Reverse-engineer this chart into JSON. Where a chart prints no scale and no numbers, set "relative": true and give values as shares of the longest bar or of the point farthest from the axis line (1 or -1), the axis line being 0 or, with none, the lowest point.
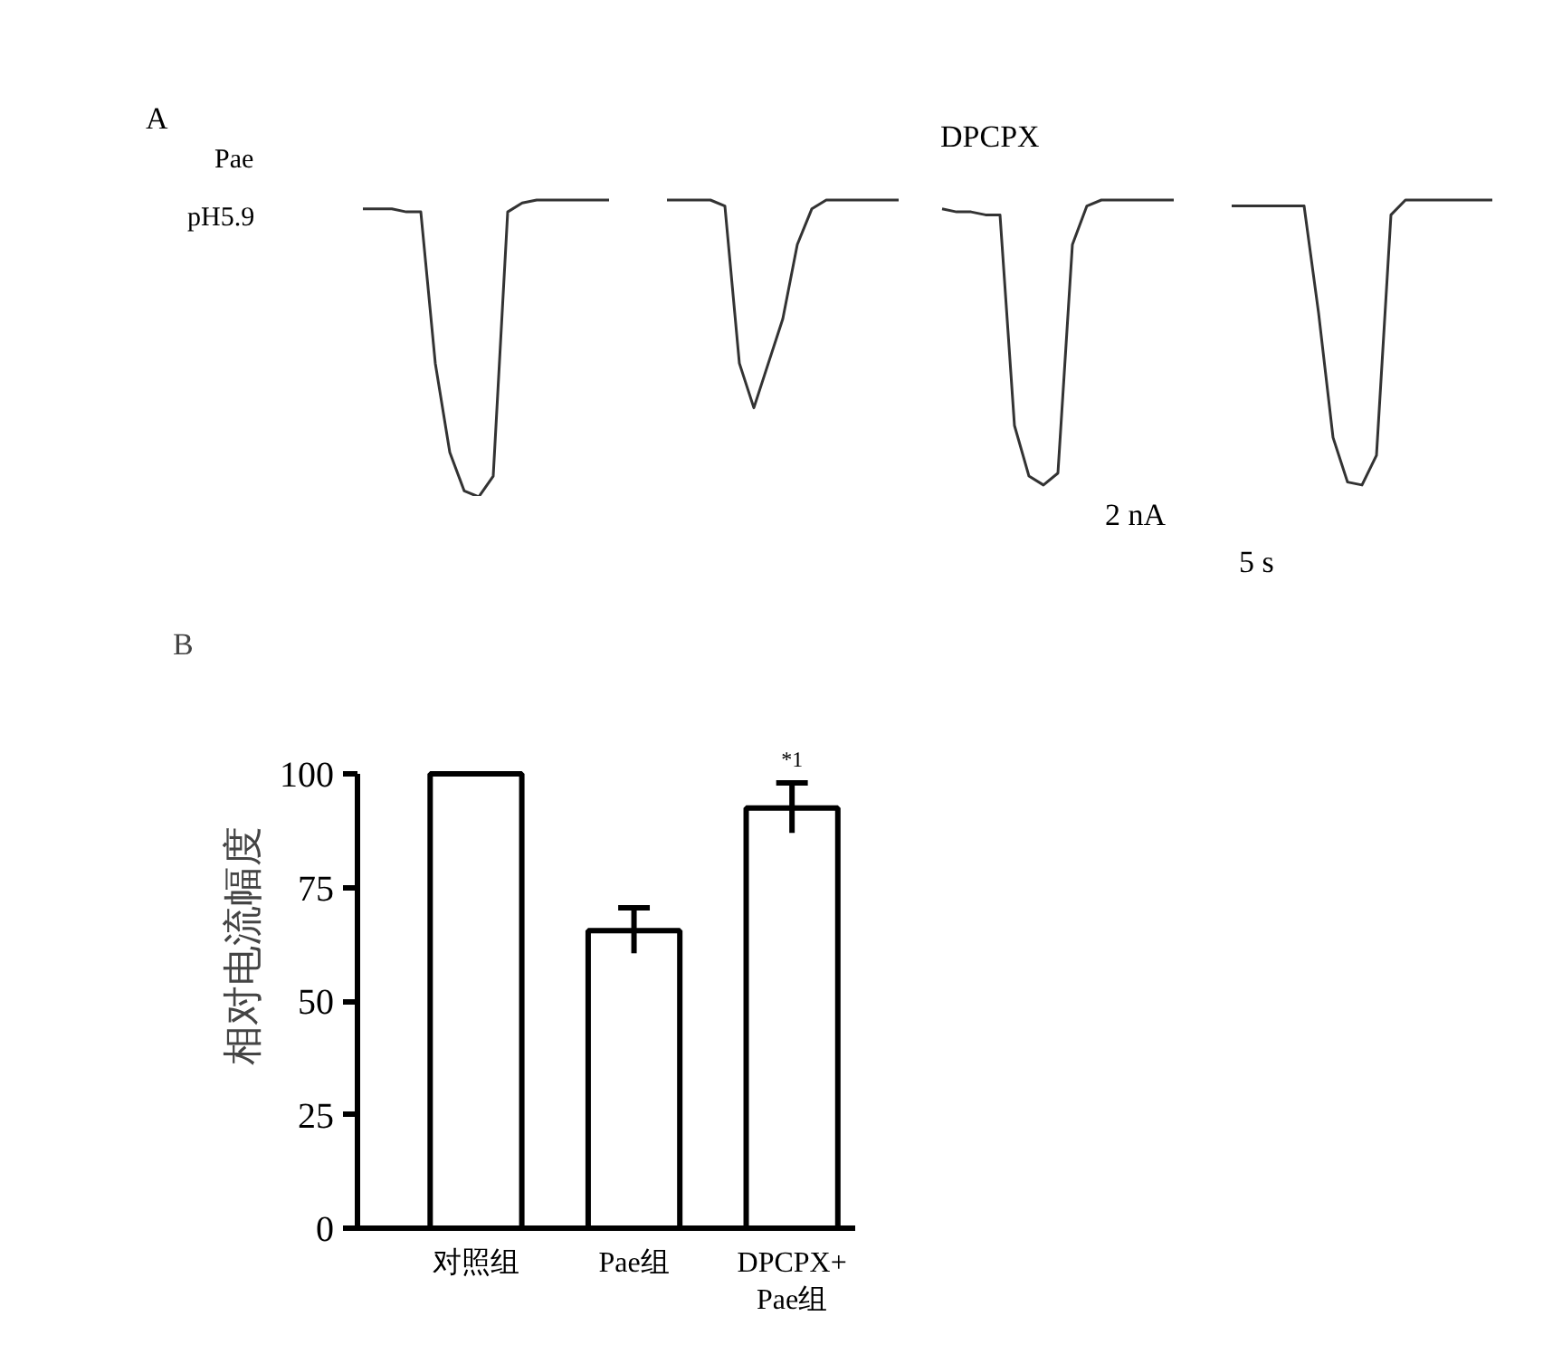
{
  "chart_data": [
    {
      "type": "other",
      "annotations": [
        "A",
        "Pae",
        "pH5.9"
      ]
    },
    {
      "type": "line",
      "relative": true,
      "categories": [
        null,
        null,
        null,
        null,
        null,
        null,
        null,
        null,
        null,
        null,
        null,
        null,
        null,
        null,
        null,
        null,
        null,
        null
      ],
      "series": [
        {
          "color": "#333333",
          "values": [
            0.97,
            0.97,
            0.97,
            0.96,
            0.96,
            0.45,
            0.15,
            0.02,
            0,
            0.07,
            0.96,
            0.99,
            1,
            1,
            1,
            1,
            1,
            1
          ]
        }
      ],
      "marker": "none",
      "line_style": "solid",
      "grid": false,
      "tick_labels": false
    },
    {
      "type": "line",
      "relative": true,
      "categories": [
        null,
        null,
        null,
        null,
        null,
        null,
        null,
        null,
        null,
        null,
        null,
        null,
        null,
        null,
        null,
        null,
        null
      ],
      "series": [
        {
          "color": "#333333",
          "values": [
            1,
            1,
            1,
            1,
            0.98,
            0.45,
            0.3,
            0.45,
            0.6,
            0.85,
            0.97,
            1,
            1,
            1,
            1,
            1,
            1
          ]
        }
      ],
      "marker": "none",
      "line_style": "solid",
      "grid": false,
      "tick_labels": false
    },
    {
      "type": "line",
      "relative": true,
      "categories": [
        null,
        null,
        null,
        null,
        null,
        null,
        null,
        null,
        null,
        null,
        null,
        null,
        null,
        null,
        null,
        null,
        null
      ],
      "series": [
        {
          "color": "#333333",
          "values": [
            0.97,
            0.96,
            0.96,
            0.95,
            0.95,
            0.24,
            0.07,
            0.04,
            0.08,
            0.85,
            0.98,
            1,
            1,
            1,
            1,
            1,
            1
          ]
        }
      ],
      "marker": "none",
      "line_style": "solid",
      "grid": false,
      "tick_labels": false,
      "annotations": [
        "DPCPX"
      ]
    },
    {
      "type": "other",
      "annotations": [
        "2 nA",
        "5 s"
      ]
    },
    {
      "type": "line",
      "relative": true,
      "categories": [
        null,
        null,
        null,
        null,
        null,
        null,
        null,
        null,
        null,
        null,
        null,
        null,
        null,
        null,
        null,
        null,
        null,
        null,
        null
      ],
      "series": [
        {
          "color": "#333333",
          "values": [
            0.98,
            0.98,
            0.98,
            0.98,
            0.98,
            0.98,
            0.62,
            0.2,
            0.05,
            0.04,
            0.14,
            0.95,
            1,
            1,
            1,
            1,
            1,
            1,
            1
          ]
        }
      ],
      "marker": "none",
      "line_style": "solid",
      "grid": false,
      "tick_labels": false
    },
    {
      "type": "bar",
      "title": "B",
      "ylabel": "相对电流幅度",
      "categories": [
        "对照组",
        "Pae组",
        "DPCPX+\nPae组"
      ],
      "values": [
        100,
        65.5,
        92.5
      ],
      "errors": [
        null,
        5,
        5.5
      ],
      "colors": [
        "#ffffff",
        "#ffffff",
        "#ffffff"
      ],
      "ylim": [
        0,
        100
      ],
      "yticks": [
        0,
        25,
        50,
        75,
        100
      ],
      "grid": false,
      "annotations": [
        "*1"
      ]
    }
  ]
}
